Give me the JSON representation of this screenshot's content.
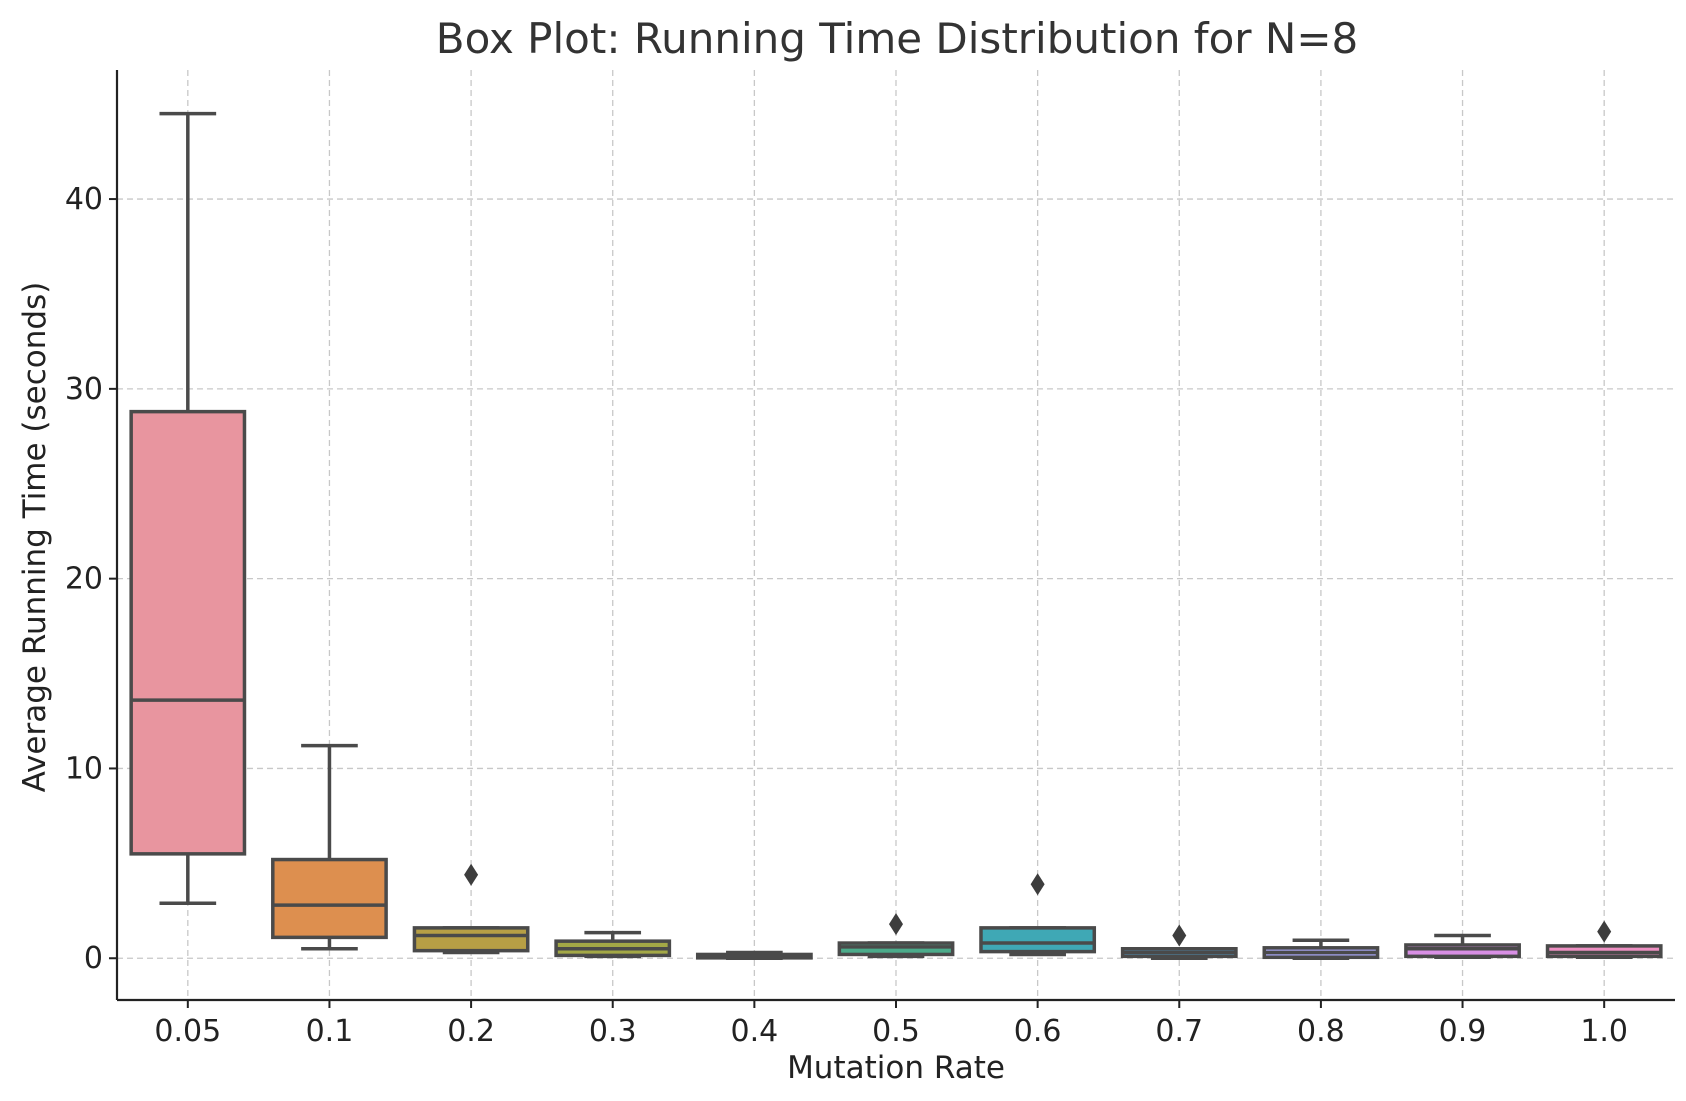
{
  "chart_data": {
    "type": "box",
    "title": "Box Plot: Running Time Distribution for N=8",
    "xlabel": "Mutation Rate",
    "ylabel": "Average Running Time (seconds)",
    "ylim": [
      -2.2,
      46.8
    ],
    "yticks": [
      0,
      10,
      20,
      30,
      40
    ],
    "grid": true,
    "categories": [
      "0.05",
      "0.1",
      "0.2",
      "0.3",
      "0.4",
      "0.5",
      "0.6",
      "0.7",
      "0.8",
      "0.9",
      "1.0"
    ],
    "boxes": [
      {
        "category": "0.05",
        "whisker_low": 2.9,
        "q1": 5.5,
        "median": 13.6,
        "q3": 28.8,
        "whisker_high": 44.5,
        "outliers": [],
        "color": "#e8959f"
      },
      {
        "category": "0.1",
        "whisker_low": 0.5,
        "q1": 1.1,
        "median": 2.8,
        "q3": 5.2,
        "whisker_high": 11.2,
        "outliers": [],
        "color": "#dd8f4f"
      },
      {
        "category": "0.2",
        "whisker_low": 0.3,
        "q1": 0.4,
        "median": 1.2,
        "q3": 1.6,
        "whisker_high": 1.6,
        "outliers": [
          4.4
        ],
        "color": "#b79f45"
      },
      {
        "category": "0.3",
        "whisker_low": 0.1,
        "q1": 0.15,
        "median": 0.5,
        "q3": 0.9,
        "whisker_high": 1.35,
        "outliers": [],
        "color": "#a3a846"
      },
      {
        "category": "0.4",
        "whisker_low": 0.0,
        "q1": 0.02,
        "median": 0.1,
        "q3": 0.2,
        "whisker_high": 0.3,
        "outliers": [],
        "color": "#5ba853"
      },
      {
        "category": "0.5",
        "whisker_low": 0.1,
        "q1": 0.2,
        "median": 0.6,
        "q3": 0.8,
        "whisker_high": 0.8,
        "outliers": [
          1.8
        ],
        "color": "#4bab8a"
      },
      {
        "category": "0.6",
        "whisker_low": 0.2,
        "q1": 0.35,
        "median": 0.8,
        "q3": 1.6,
        "whisker_high": 1.6,
        "outliers": [
          3.9
        ],
        "color": "#3fa8b5"
      },
      {
        "category": "0.7",
        "whisker_low": 0.0,
        "q1": 0.1,
        "median": 0.3,
        "q3": 0.5,
        "whisker_high": 0.5,
        "outliers": [
          1.2
        ],
        "color": "#52a6d8"
      },
      {
        "category": "0.8",
        "whisker_low": 0.0,
        "q1": 0.05,
        "median": 0.3,
        "q3": 0.55,
        "whisker_high": 0.95,
        "outliers": [],
        "color": "#a3a1ea"
      },
      {
        "category": "0.9",
        "whisker_low": 0.05,
        "q1": 0.1,
        "median": 0.5,
        "q3": 0.7,
        "whisker_high": 1.2,
        "outliers": [],
        "color": "#d88fe4"
      },
      {
        "category": "1.0",
        "whisker_low": 0.05,
        "q1": 0.1,
        "median": 0.3,
        "q3": 0.65,
        "whisker_high": 0.65,
        "outliers": [
          1.4
        ],
        "color": "#ee8fc2"
      }
    ]
  }
}
